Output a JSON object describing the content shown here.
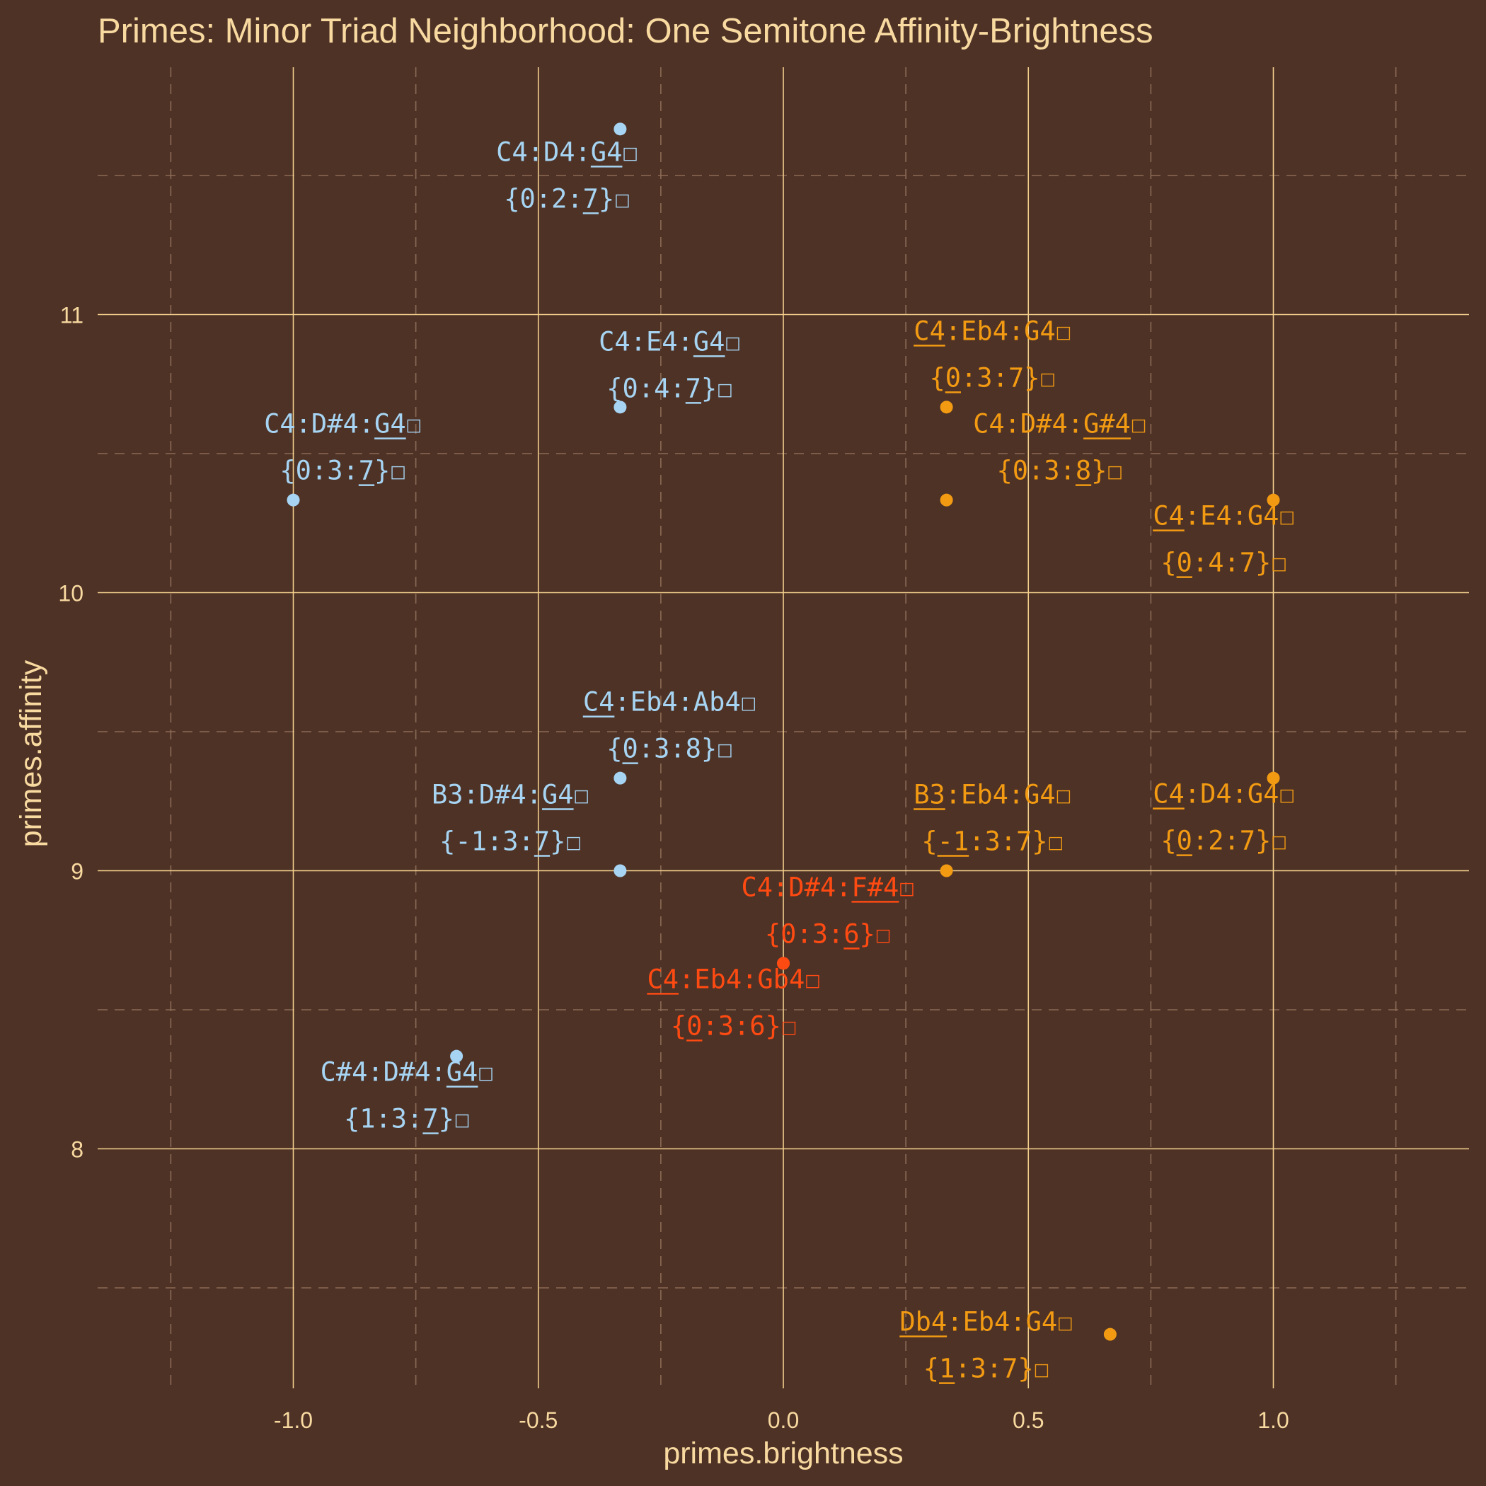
{
  "chart_data": {
    "type": "scatter",
    "title": "Primes: Minor Triad Neighborhood: One Semitone Affinity-Brightness",
    "xlabel": "primes.brightness",
    "ylabel": "primes.affinity",
    "xlim": [
      -1.4,
      1.4
    ],
    "ylim": [
      7.2,
      11.9
    ],
    "xticks": [
      "-1.0",
      "-0.5",
      "0.0",
      "0.5",
      "1.0"
    ],
    "yticks": [
      "8",
      "9",
      "10",
      "11"
    ],
    "grid": true,
    "legend": "none",
    "colors": {
      "background": "#4e3226",
      "grid_major": "#f3cf8c",
      "grid_minor": "#8c6a55",
      "text": "#f8d9a0",
      "blue": "#a6d4f2",
      "orange": "#f29a12",
      "red": "#ff4a12"
    },
    "points": [
      {
        "x": -0.333,
        "y": 11.667,
        "color": "blue",
        "label": "C4:D4:G4☐",
        "label2": "{0:2:7}☐",
        "underline": "G4",
        "underline2": "7"
      },
      {
        "x": -0.333,
        "y": 10.667,
        "color": "blue",
        "label": "C4:E4:G4☐",
        "label2": "{0:4:7}☐",
        "underline": "G4",
        "underline2": "7"
      },
      {
        "x": -1.0,
        "y": 10.333,
        "color": "blue",
        "label": "C4:D#4:G4☐",
        "label2": "{0:3:7}☐",
        "underline": "G4",
        "underline2": "7"
      },
      {
        "x": -0.333,
        "y": 9.333,
        "color": "blue",
        "label": "C4:Eb4:Ab4☐",
        "label2": "{0:3:8}☐",
        "underline": "C4",
        "underline2": "0"
      },
      {
        "x": -0.333,
        "y": 9.0,
        "color": "blue",
        "label": "B3:D#4:G4☐",
        "label2": "{-1:3:7}☐",
        "underline": "G4",
        "underline2": "7"
      },
      {
        "x": -0.667,
        "y": 8.333,
        "color": "blue",
        "label": "C#4:D#4:G4☐",
        "label2": "{1:3:7}☐",
        "underline": "G4",
        "underline2": "7"
      },
      {
        "x": 0.333,
        "y": 10.667,
        "color": "orange",
        "label": "C4:Eb4:G4☐",
        "label2": "{0:3:7}☐",
        "underline": "C4",
        "underline2": "0"
      },
      {
        "x": 0.333,
        "y": 10.333,
        "color": "orange",
        "label": "C4:D#4:G#4☐",
        "label2": "{0:3:8}☐",
        "underline": "G#4",
        "underline2": "8"
      },
      {
        "x": 1.0,
        "y": 10.333,
        "color": "orange",
        "label": "C4:E4:G4☐",
        "label2": "{0:4:7}☐",
        "underline": "C4",
        "underline2": "0"
      },
      {
        "x": 1.0,
        "y": 9.333,
        "color": "orange",
        "label": "C4:D4:G4☐",
        "label2": "{0:2:7}☐",
        "underline": "C4",
        "underline2": "0"
      },
      {
        "x": 0.333,
        "y": 9.0,
        "color": "orange",
        "label": "B3:Eb4:G4☐",
        "label2": "{-1:3:7}☐",
        "underline": "B3",
        "underline2": "-1"
      },
      {
        "x": 0.667,
        "y": 7.333,
        "color": "orange",
        "label": "Db4:Eb4:G4☐",
        "label2": "{1:3:7}☐",
        "underline": "Db4",
        "underline2": "1"
      },
      {
        "x": 0.0,
        "y": 8.667,
        "color": "red",
        "label": "C4:D#4:F#4☐",
        "label2": "{0:3:6}☐",
        "underline": "F#4",
        "underline2": "6"
      },
      {
        "x": 0.0,
        "y": 8.667,
        "color": "red",
        "label": "C4:Eb4:Gb4☐",
        "label2": "{0:3:6}☐",
        "underline": "C4",
        "underline2": "0"
      }
    ]
  }
}
